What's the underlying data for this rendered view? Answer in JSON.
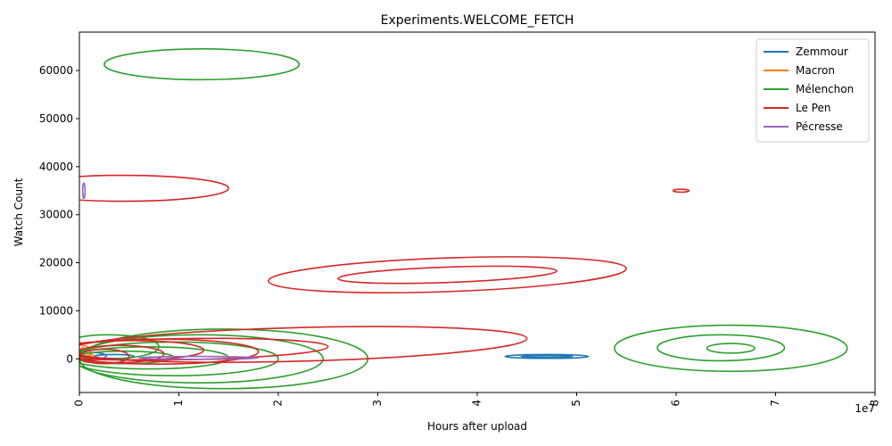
{
  "chart_data": {
    "type": "contour",
    "title": "Experiments.WELCOME_FETCH",
    "xlabel": "Hours after upload",
    "ylabel": "Watch Count",
    "x_exponent_label": "1e7",
    "xlim": [
      0,
      80000000
    ],
    "ylim": [
      -7000,
      68000
    ],
    "x_ticks": [
      0,
      10000000,
      20000000,
      30000000,
      40000000,
      50000000,
      60000000,
      70000000,
      80000000
    ],
    "x_tick_labels": [
      "0",
      "1",
      "2",
      "3",
      "4",
      "5",
      "6",
      "7",
      "8"
    ],
    "y_ticks": [
      0,
      10000,
      20000,
      30000,
      40000,
      50000,
      60000
    ],
    "y_tick_labels": [
      "0",
      "10000",
      "20000",
      "30000",
      "40000",
      "50000",
      "60000"
    ],
    "grid": false,
    "legend_position": "top-right",
    "series": [
      {
        "name": "Zemmour",
        "color": "#1f77b4",
        "contours": [
          {
            "cx": 3500000,
            "cy": 500,
            "rx": 2000000,
            "ry": 400,
            "angle": 0
          },
          {
            "cx": 1500000,
            "cy": 600,
            "rx": 1200000,
            "ry": 700,
            "angle": 0
          },
          {
            "cx": 47000000,
            "cy": 500,
            "rx": 4200000,
            "ry": 400,
            "angle": 0
          },
          {
            "cx": 47000000,
            "cy": 500,
            "rx": 2600000,
            "ry": 180,
            "angle": 0
          }
        ]
      },
      {
        "name": "Macron",
        "color": "#ff7f0e",
        "contours": [
          {
            "cx": 800000,
            "cy": 200,
            "rx": 700000,
            "ry": 900,
            "angle": 0
          },
          {
            "cx": 800000,
            "cy": 200,
            "rx": 400000,
            "ry": 500,
            "angle": 0
          },
          {
            "cx": 600000,
            "cy": 1200,
            "rx": 500000,
            "ry": 1500,
            "angle": 0
          }
        ]
      },
      {
        "name": "Mélenchon",
        "color": "#2ca02c",
        "contours": [
          {
            "cx": 12300000,
            "cy": 61300,
            "rx": 9800000,
            "ry": 3200,
            "angle": 0
          },
          {
            "cx": 14500000,
            "cy": 0,
            "rx": 14500000,
            "ry": 6200,
            "angle": 0
          },
          {
            "cx": 12000000,
            "cy": 0,
            "rx": 12500000,
            "ry": 5000,
            "angle": 0
          },
          {
            "cx": 9500000,
            "cy": 0,
            "rx": 10500000,
            "ry": 3500,
            "angle": 0
          },
          {
            "cx": 7000000,
            "cy": 200,
            "rx": 8000000,
            "ry": 2300,
            "angle": 0
          },
          {
            "cx": 4500000,
            "cy": 300,
            "rx": 5000000,
            "ry": 1300,
            "angle": 0
          },
          {
            "cx": 3000000,
            "cy": 2500,
            "rx": 5000000,
            "ry": 2500,
            "angle": 0
          },
          {
            "cx": 65500000,
            "cy": 2200,
            "rx": 11700000,
            "ry": 4800,
            "angle": 0
          },
          {
            "cx": 64500000,
            "cy": 2300,
            "rx": 6400000,
            "ry": 2700,
            "angle": 0
          },
          {
            "cx": 65500000,
            "cy": 2200,
            "rx": 2400000,
            "ry": 1000,
            "angle": 0
          }
        ]
      },
      {
        "name": "Le Pen",
        "color": "#d62728",
        "contours": [
          {
            "cx": 4500000,
            "cy": 35500,
            "rx": 10500000,
            "ry": 2700,
            "angle": 0
          },
          {
            "cx": 37000000,
            "cy": 17500,
            "rx": 18000000,
            "ry": 3500,
            "angle": -2
          },
          {
            "cx": 37000000,
            "cy": 17500,
            "rx": 11000000,
            "ry": 1600,
            "angle": -2
          },
          {
            "cx": 22000000,
            "cy": 3000,
            "rx": 23000000,
            "ry": 3500,
            "angle": -1.5
          },
          {
            "cx": 10000000,
            "cy": 2000,
            "rx": 15000000,
            "ry": 2200,
            "angle": -1
          },
          {
            "cx": 8000000,
            "cy": 1500,
            "rx": 10000000,
            "ry": 2600,
            "angle": 0
          },
          {
            "cx": 5500000,
            "cy": 1800,
            "rx": 7000000,
            "ry": 2000,
            "angle": 0
          },
          {
            "cx": 4000000,
            "cy": 1000,
            "rx": 4500000,
            "ry": 1800,
            "angle": 0
          },
          {
            "cx": 2500000,
            "cy": 500,
            "rx": 2500000,
            "ry": 1500,
            "angle": 0
          },
          {
            "cx": 60500000,
            "cy": 35000,
            "rx": 800000,
            "ry": 300,
            "angle": 0
          }
        ]
      },
      {
        "name": "Pécresse",
        "color": "#9467bd",
        "contours": [
          {
            "cx": 450000,
            "cy": 35000,
            "rx": 120000,
            "ry": 1600,
            "angle": 0
          },
          {
            "cx": 12000000,
            "cy": 200,
            "rx": 6000000,
            "ry": 300,
            "angle": 0
          }
        ]
      }
    ]
  }
}
